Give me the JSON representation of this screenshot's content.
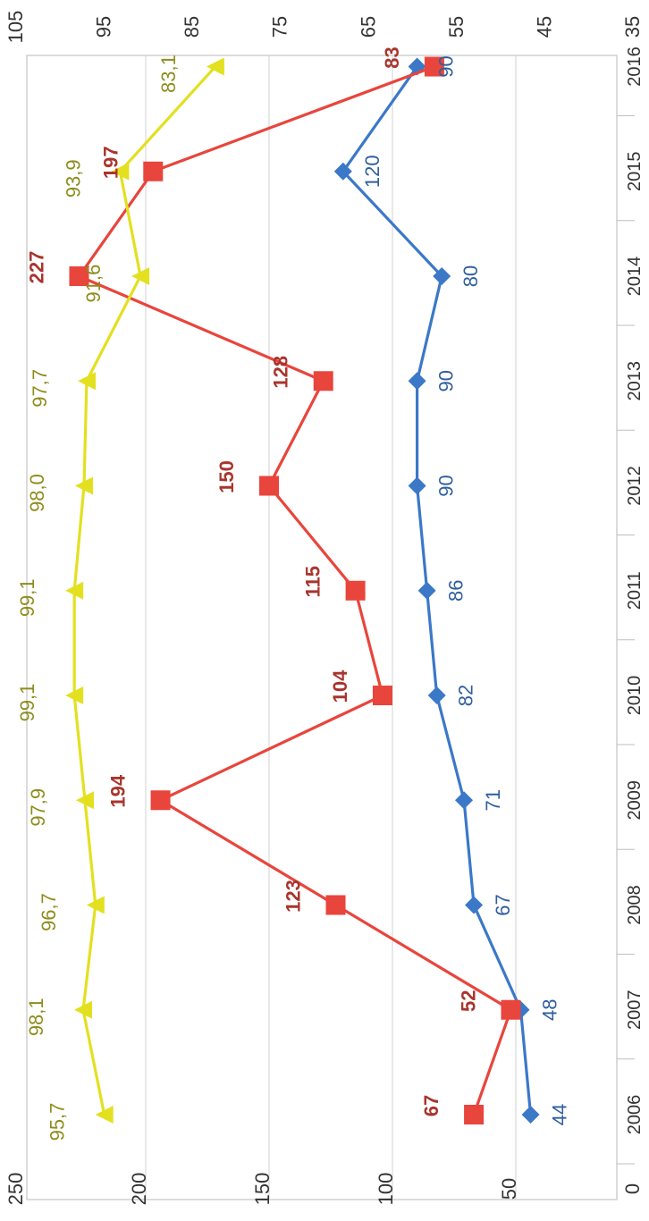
{
  "chart_data": {
    "type": "line",
    "orientation": "rotated-90",
    "x": [
      "2006",
      "2007",
      "2008",
      "2009",
      "2010",
      "2011",
      "2012",
      "2013",
      "2014",
      "2015",
      "2016"
    ],
    "x_visible_labels": [
      "2006",
      "2007",
      "2008",
      "2009",
      "2010",
      "2011",
      "2012",
      "2013",
      "2014",
      "2015",
      "2016"
    ],
    "primary_axis": {
      "min": 0,
      "max": 250,
      "ticks": [
        "0",
        "50",
        "100",
        "150",
        "200",
        "250"
      ]
    },
    "secondary_axis": {
      "min": 35,
      "max": 105,
      "ticks": [
        "35",
        "45",
        "55",
        "65",
        "75",
        "85",
        "95",
        "105"
      ]
    },
    "grid": true,
    "series": [
      {
        "axis": "primary",
        "marker": "diamond",
        "color": "#3b78c8",
        "values": [
          44,
          48,
          67,
          71,
          82,
          86,
          90,
          90,
          80,
          120,
          90
        ],
        "labels": [
          "44",
          "48",
          "67",
          "71",
          "82",
          "86",
          "90",
          "90",
          "80",
          "120",
          "90"
        ]
      },
      {
        "axis": "primary",
        "marker": "square",
        "color": "#e8453c",
        "values": [
          67,
          52,
          123,
          194,
          104,
          115,
          150,
          128,
          227,
          197,
          83
        ],
        "labels": [
          "67",
          "52",
          "123",
          "194",
          "104",
          "115",
          "150",
          "128",
          "227",
          "197",
          "83"
        ]
      },
      {
        "axis": "secondary",
        "marker": "triangle",
        "color": "#e3e020",
        "values": [
          95.7,
          98.1,
          96.7,
          97.9,
          99.1,
          99.1,
          98.0,
          97.7,
          91.6,
          93.9,
          83.1
        ],
        "labels": [
          "95,7",
          "98,1",
          "96,7",
          "97,9",
          "99,1",
          "99,1",
          "98,0",
          "97,7",
          "91,6",
          "93,9",
          "83,1"
        ]
      }
    ]
  }
}
